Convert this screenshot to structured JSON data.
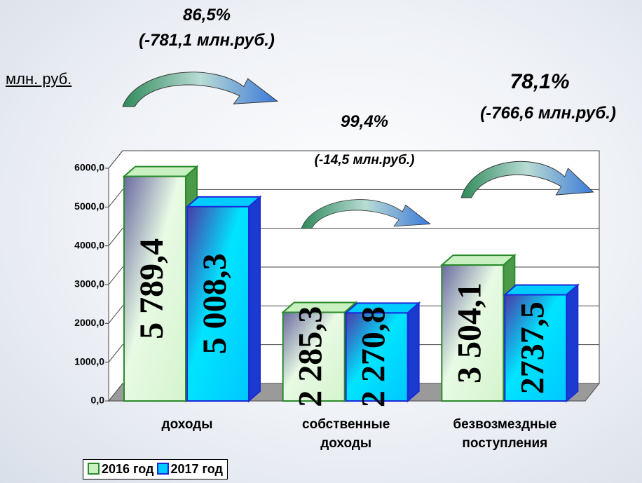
{
  "chart_data": {
    "type": "bar3d",
    "unit_label": "млн. руб.",
    "annotations": [
      {
        "percent": "86,5%",
        "change": "(-781,1 млн.руб.)"
      },
      {
        "percent": "99,4%",
        "change": "(-14,5 млн.руб.)"
      },
      {
        "percent": "78,1%",
        "change": "(-766,6 млн.руб.)"
      }
    ],
    "categories": [
      "доходы",
      "собственные доходы",
      "безвозмездные поступления"
    ],
    "series": [
      {
        "name": "2016 год",
        "color": "#c8f0c0",
        "values": [
          5789.4,
          2285.3,
          3504.1
        ],
        "value_labels": [
          "5 789,4",
          "2 285,3",
          "3 504,1"
        ]
      },
      {
        "name": "2017 год",
        "color": "#00ccff",
        "values": [
          5008.3,
          2270.8,
          2737.5
        ],
        "value_labels": [
          "5 008,3",
          "2 270,8",
          "2737,5"
        ]
      }
    ],
    "ylim": [
      0,
      6000
    ],
    "yticks": [
      {
        "value": 0,
        "label": "0,0"
      },
      {
        "value": 1000,
        "label": "1000,0"
      },
      {
        "value": 2000,
        "label": "2000,0"
      },
      {
        "value": 3000,
        "label": "3000,0"
      },
      {
        "value": 4000,
        "label": "4000,0"
      },
      {
        "value": 5000,
        "label": "5000,0"
      },
      {
        "value": 6000,
        "label": "6000,0"
      }
    ],
    "grid": true,
    "legend": "bottom-left"
  }
}
